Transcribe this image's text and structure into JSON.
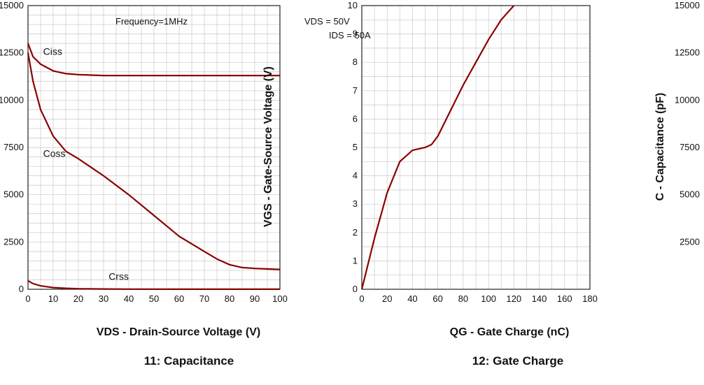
{
  "chart_data": [
    {
      "type": "line",
      "title": "",
      "caption": "11: Capacitance",
      "xlabel": "VDS - Drain-Source Voltage (V)",
      "ylabel": "C - Capacitance (pF)",
      "xlim": [
        0,
        100
      ],
      "ylim": [
        0,
        15000
      ],
      "xticks": [
        0,
        10,
        20,
        30,
        40,
        50,
        60,
        70,
        80,
        90,
        100
      ],
      "yticks": [
        0,
        2500,
        5000,
        7500,
        10000,
        12500,
        15000
      ],
      "grid": true,
      "annotation": "Frequency=1MHz",
      "series": [
        {
          "name": "Ciss",
          "x": [
            0,
            2,
            5,
            10,
            15,
            20,
            30,
            40,
            50,
            60,
            70,
            80,
            90,
            100
          ],
          "y": [
            13000,
            12300,
            11900,
            11550,
            11400,
            11350,
            11300,
            11300,
            11300,
            11300,
            11300,
            11300,
            11300,
            11300
          ]
        },
        {
          "name": "Coss",
          "x": [
            0,
            2,
            5,
            10,
            15,
            20,
            30,
            40,
            50,
            60,
            70,
            75,
            80,
            85,
            90,
            100
          ],
          "y": [
            12500,
            11000,
            9500,
            8100,
            7300,
            6900,
            6000,
            5000,
            3900,
            2800,
            2000,
            1600,
            1300,
            1150,
            1100,
            1050
          ]
        },
        {
          "name": "Crss",
          "x": [
            0,
            2,
            5,
            10,
            15,
            20,
            30,
            40,
            60,
            80,
            100
          ],
          "y": [
            450,
            300,
            180,
            90,
            50,
            30,
            15,
            8,
            5,
            3,
            2
          ]
        }
      ]
    },
    {
      "type": "line",
      "title": "",
      "caption": "12: Gate Charge",
      "xlabel": "QG - Gate Charge (nC)",
      "ylabel": "VGS - Gate-Source Voltage (V)",
      "xlim": [
        0,
        180
      ],
      "ylim": [
        0,
        10
      ],
      "xticks": [
        0,
        20,
        40,
        60,
        80,
        100,
        120,
        140,
        160,
        180
      ],
      "yticks": [
        0,
        1,
        2,
        3,
        4,
        5,
        6,
        7,
        8,
        9,
        10
      ],
      "grid": true,
      "annotation_lines": [
        "VDS = 50V",
        "IDS = 50A"
      ],
      "series": [
        {
          "name": "",
          "x": [
            0,
            10,
            20,
            30,
            40,
            50,
            55,
            60,
            70,
            80,
            90,
            100,
            110,
            120
          ],
          "y": [
            0,
            1.8,
            3.4,
            4.5,
            4.9,
            5.0,
            5.1,
            5.4,
            6.3,
            7.2,
            8.0,
            8.8,
            9.5,
            10
          ]
        }
      ]
    }
  ]
}
